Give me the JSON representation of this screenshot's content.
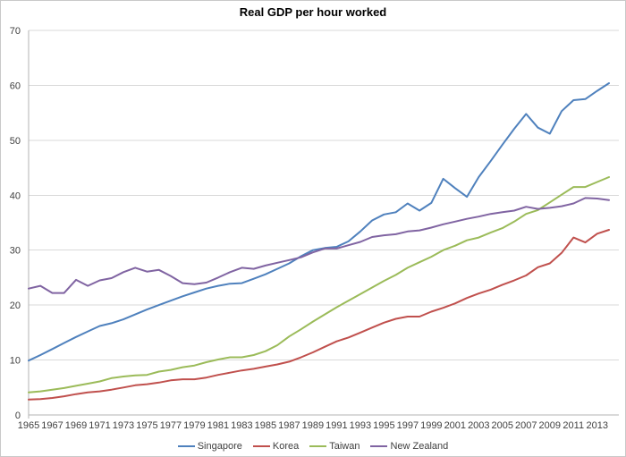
{
  "chart": {
    "title": "Real GDP per hour worked"
  },
  "style": {
    "grid_color": "#d9d9d9",
    "axis_color": "#b3b3b3",
    "tick_text_color": "#3f3f3f",
    "frame_border_color": "#c9c9c9",
    "background": "#ffffff"
  },
  "chart_data": {
    "type": "line",
    "title": "Real GDP per hour worked",
    "xlabel": "",
    "ylabel": "",
    "ylim": [
      0,
      70
    ],
    "ytick_step": 10,
    "grid": "horizontal",
    "legend_position": "bottom",
    "x": [
      1965,
      1966,
      1967,
      1968,
      1969,
      1970,
      1971,
      1972,
      1973,
      1974,
      1975,
      1976,
      1977,
      1978,
      1979,
      1980,
      1981,
      1982,
      1983,
      1984,
      1985,
      1986,
      1987,
      1988,
      1989,
      1990,
      1991,
      1992,
      1993,
      1994,
      1995,
      1996,
      1997,
      1998,
      1999,
      2000,
      2001,
      2002,
      2003,
      2004,
      2005,
      2006,
      2007,
      2008,
      2009,
      2010,
      2011,
      2012,
      2013,
      2014
    ],
    "xtick_labels": [
      "1965",
      "1967",
      "1969",
      "1971",
      "1973",
      "1975",
      "1977",
      "1979",
      "1981",
      "1983",
      "1985",
      "1987",
      "1989",
      "1991",
      "1993",
      "1995",
      "1997",
      "1999",
      "2001",
      "2003",
      "2005",
      "2007",
      "2009",
      "2011",
      "2013"
    ],
    "ytick_labels": [
      "0",
      "10",
      "20",
      "30",
      "40",
      "50",
      "60",
      "70"
    ],
    "series": [
      {
        "name": "Singapore",
        "color": "#4f81bd",
        "values": [
          9.9,
          10.9,
          12.0,
          13.1,
          14.2,
          15.2,
          16.2,
          16.7,
          17.4,
          18.3,
          19.2,
          20.0,
          20.8,
          21.6,
          22.3,
          23.0,
          23.5,
          23.9,
          24.0,
          24.8,
          25.6,
          26.6,
          27.6,
          28.9,
          30.0,
          30.4,
          30.6,
          31.6,
          33.4,
          35.4,
          36.5,
          36.9,
          38.5,
          37.2,
          38.6,
          43.0,
          41.3,
          39.7,
          43.3,
          46.2,
          49.2,
          52.1,
          54.8,
          52.3,
          51.2,
          55.3,
          57.3,
          57.5,
          59.0,
          60.4
        ]
      },
      {
        "name": "Korea",
        "color": "#c0504d",
        "values": [
          2.8,
          2.9,
          3.1,
          3.4,
          3.8,
          4.1,
          4.3,
          4.6,
          5.0,
          5.4,
          5.6,
          5.9,
          6.3,
          6.5,
          6.5,
          6.8,
          7.3,
          7.7,
          8.1,
          8.4,
          8.8,
          9.2,
          9.7,
          10.5,
          11.4,
          12.4,
          13.4,
          14.1,
          15.0,
          15.9,
          16.8,
          17.5,
          17.9,
          17.9,
          18.8,
          19.5,
          20.3,
          21.3,
          22.1,
          22.8,
          23.7,
          24.5,
          25.4,
          26.9,
          27.6,
          29.5,
          32.3,
          31.4,
          33.0,
          33.7
        ]
      },
      {
        "name": "Taiwan",
        "color": "#9bbb59",
        "values": [
          4.1,
          4.3,
          4.6,
          4.9,
          5.3,
          5.7,
          6.1,
          6.7,
          7.0,
          7.2,
          7.3,
          7.9,
          8.2,
          8.7,
          9.0,
          9.6,
          10.1,
          10.5,
          10.5,
          10.9,
          11.6,
          12.7,
          14.3,
          15.6,
          17.0,
          18.3,
          19.6,
          20.8,
          22.0,
          23.2,
          24.4,
          25.5,
          26.8,
          27.8,
          28.8,
          30.0,
          30.8,
          31.8,
          32.3,
          33.2,
          34.0,
          35.2,
          36.6,
          37.3,
          38.7,
          40.1,
          41.5,
          41.5,
          42.4,
          43.3
        ]
      },
      {
        "name": "New Zealand",
        "color": "#8064a2",
        "values": [
          23.0,
          23.5,
          22.2,
          22.2,
          24.6,
          23.5,
          24.5,
          24.9,
          26.0,
          26.8,
          26.1,
          26.4,
          25.3,
          24.0,
          23.8,
          24.1,
          25.0,
          26.0,
          26.8,
          26.6,
          27.2,
          27.7,
          28.2,
          28.7,
          29.6,
          30.3,
          30.3,
          30.9,
          31.5,
          32.4,
          32.7,
          32.9,
          33.4,
          33.6,
          34.1,
          34.7,
          35.2,
          35.7,
          36.1,
          36.6,
          36.9,
          37.2,
          37.9,
          37.5,
          37.7,
          38.0,
          38.5,
          39.5,
          39.4,
          39.1
        ]
      }
    ]
  }
}
